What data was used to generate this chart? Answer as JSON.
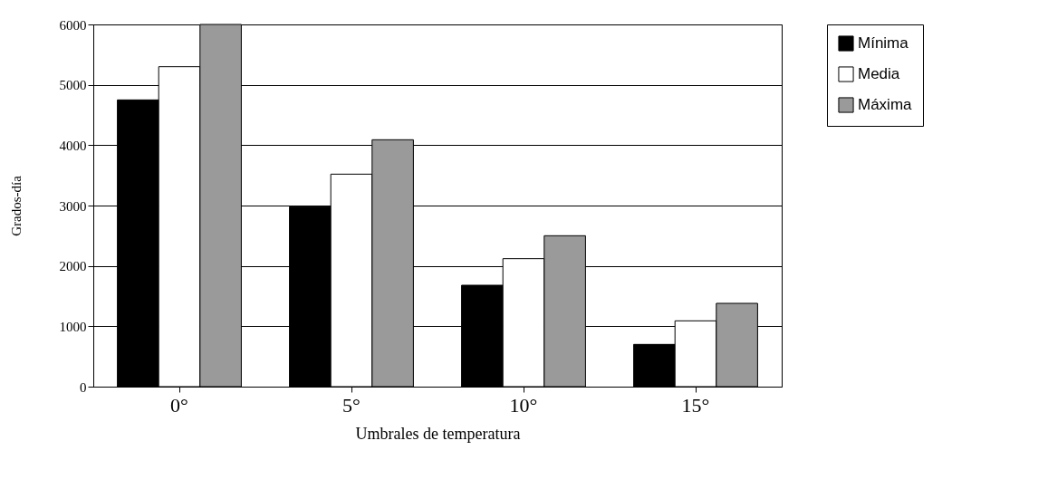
{
  "chart_data": {
    "type": "bar",
    "xlabel": "Umbrales de temperatura",
    "ylabel": "Grados-día",
    "categories": [
      "0°",
      "5°",
      "10°",
      "15°"
    ],
    "series": [
      {
        "name": "Mínima",
        "color": "#000000",
        "values": [
          4750,
          2980,
          1680,
          700
        ]
      },
      {
        "name": "Media",
        "color": "#ffffff",
        "values": [
          5300,
          3520,
          2120,
          1090
        ]
      },
      {
        "name": "Máxima",
        "color": "#9a9a9a",
        "values": [
          6000,
          4090,
          2500,
          1380
        ]
      }
    ],
    "ylim": [
      0,
      6000
    ],
    "yticks": [
      0,
      1000,
      2000,
      3000,
      4000,
      5000,
      6000
    ],
    "grid": "y",
    "legend": "right"
  }
}
